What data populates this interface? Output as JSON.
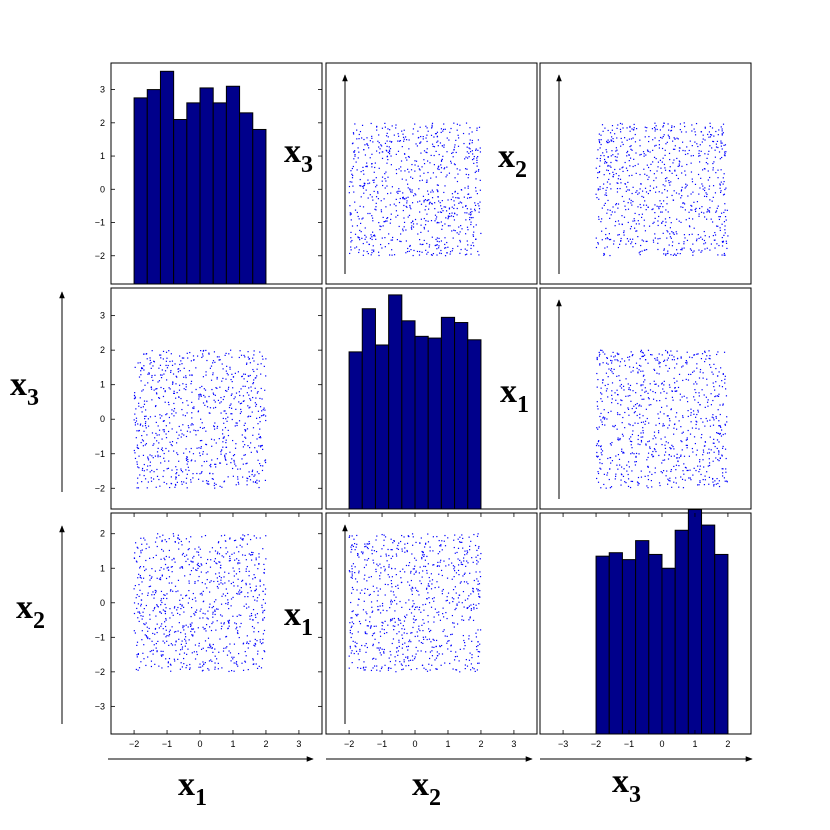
{
  "figure": {
    "x_axis_labels": [
      {
        "name": "x",
        "sub": "1"
      },
      {
        "name": "x",
        "sub": "2"
      },
      {
        "name": "x",
        "sub": "3"
      }
    ],
    "y_axis_labels": [
      {
        "name": "x",
        "sub": "3"
      },
      {
        "name": "x",
        "sub": "2"
      }
    ],
    "panel_labels": [
      {
        "name": "x",
        "sub": "3"
      },
      {
        "name": "x",
        "sub": "2"
      },
      {
        "name": "x",
        "sub": "1"
      },
      {
        "name": "x",
        "sub": "1"
      }
    ]
  },
  "colors": {
    "bar_fill": "#00008b",
    "bar_edge": "#000000",
    "scatter_point": "#0000ff",
    "frame": "#000000"
  },
  "chart_data": [
    {
      "type": "bar",
      "panel": "row1-col1",
      "bin_edges": [
        -2.0,
        -1.6,
        -1.2,
        -0.8,
        -0.4,
        0.0,
        0.4,
        0.8,
        1.2,
        1.6,
        2.0
      ],
      "values": [
        2.75,
        3.0,
        3.55,
        2.1,
        2.6,
        3.05,
        2.6,
        3.1,
        2.3,
        1.8
      ],
      "value_baseline": -2.85,
      "xlim": [
        -2.7,
        3.7
      ],
      "ylim": [
        -2.85,
        3.8
      ],
      "ytick_labels": [
        "3",
        "2",
        "1",
        "0",
        "−1",
        "−2"
      ],
      "ytick_values": [
        3,
        2,
        1,
        0,
        -1,
        -2
      ],
      "xtick_labels": [],
      "xtick_values": []
    },
    {
      "type": "scatter",
      "panel": "row1-col2",
      "xlim": [
        -2.7,
        3.7
      ],
      "ylim": [
        -2.85,
        3.8
      ],
      "x_range": [
        -2,
        2
      ],
      "y_range": [
        -2,
        2
      ],
      "n_points": 800,
      "ytick_labels": [],
      "ytick_values": [],
      "xtick_labels": [],
      "xtick_values": []
    },
    {
      "type": "scatter",
      "panel": "row1-col3",
      "xlim": [
        -3.7,
        2.7
      ],
      "ylim": [
        -2.85,
        3.8
      ],
      "x_range": [
        -2,
        2
      ],
      "y_range": [
        -2,
        2
      ],
      "n_points": 800,
      "ytick_labels": [],
      "ytick_values": [],
      "xtick_labels": [],
      "xtick_values": []
    },
    {
      "type": "scatter",
      "panel": "row2-col1",
      "xlim": [
        -2.7,
        3.7
      ],
      "ylim": [
        -2.6,
        3.8
      ],
      "x_range": [
        -2,
        2
      ],
      "y_range": [
        -2,
        2
      ],
      "n_points": 800,
      "ytick_labels": [
        "3",
        "2",
        "1",
        "0",
        "−1",
        "−2"
      ],
      "ytick_values": [
        3,
        2,
        1,
        0,
        -1,
        -2
      ],
      "xtick_labels": [],
      "xtick_values": []
    },
    {
      "type": "bar",
      "panel": "row2-col2",
      "bin_edges": [
        -2.0,
        -1.6,
        -1.2,
        -0.8,
        -0.4,
        0.0,
        0.4,
        0.8,
        1.2,
        1.6,
        2.0
      ],
      "values": [
        1.95,
        3.2,
        2.15,
        3.6,
        2.85,
        2.4,
        2.35,
        2.95,
        2.8,
        2.3
      ],
      "value_baseline": -2.6,
      "xlim": [
        -2.7,
        3.7
      ],
      "ylim": [
        -2.6,
        3.8
      ],
      "ytick_labels": [],
      "ytick_values": [],
      "xtick_labels": [],
      "xtick_values": []
    },
    {
      "type": "scatter",
      "panel": "row2-col3",
      "xlim": [
        -3.7,
        2.7
      ],
      "ylim": [
        -2.6,
        3.8
      ],
      "x_range": [
        -2,
        2
      ],
      "y_range": [
        -2,
        2
      ],
      "n_points": 800,
      "ytick_labels": [],
      "ytick_values": [],
      "xtick_labels": [],
      "xtick_values": []
    },
    {
      "type": "scatter",
      "panel": "row3-col1",
      "xlim": [
        -2.7,
        3.7
      ],
      "ylim": [
        -3.8,
        2.6
      ],
      "x_range": [
        -2,
        2
      ],
      "y_range": [
        -2,
        2
      ],
      "n_points": 800,
      "ytick_labels": [
        "2",
        "1",
        "0",
        "−1",
        "−2",
        "−3"
      ],
      "ytick_values": [
        2,
        1,
        0,
        -1,
        -2,
        -3
      ],
      "xtick_labels": [
        "−2",
        "−1",
        "0",
        "1",
        "2",
        "3"
      ],
      "xtick_values": [
        -2,
        -1,
        0,
        1,
        2,
        3
      ]
    },
    {
      "type": "scatter",
      "panel": "row3-col2",
      "xlim": [
        -2.7,
        3.7
      ],
      "ylim": [
        -3.8,
        2.6
      ],
      "x_range": [
        -2,
        2
      ],
      "y_range": [
        -2,
        2
      ],
      "n_points": 800,
      "ytick_labels": [],
      "ytick_values": [],
      "xtick_labels": [
        "−2",
        "−1",
        "0",
        "1",
        "2",
        "3"
      ],
      "xtick_values": [
        -2,
        -1,
        0,
        1,
        2,
        3
      ]
    },
    {
      "type": "bar",
      "panel": "row3-col3",
      "bin_edges": [
        -2.0,
        -1.6,
        -1.2,
        -0.8,
        -0.4,
        0.0,
        0.4,
        0.8,
        1.2,
        1.6,
        2.0
      ],
      "values": [
        1.35,
        1.45,
        1.25,
        1.8,
        1.4,
        1.0,
        2.1,
        2.7,
        2.25,
        1.4
      ],
      "value_baseline": -3.8,
      "xlim": [
        -3.7,
        2.7
      ],
      "ylim": [
        -3.8,
        2.6
      ],
      "ytick_labels": [],
      "ytick_values": [],
      "xtick_labels": [
        "−3",
        "−2",
        "−1",
        "0",
        "1",
        "2"
      ],
      "xtick_values": [
        -3,
        -2,
        -1,
        0,
        1,
        2
      ]
    }
  ]
}
